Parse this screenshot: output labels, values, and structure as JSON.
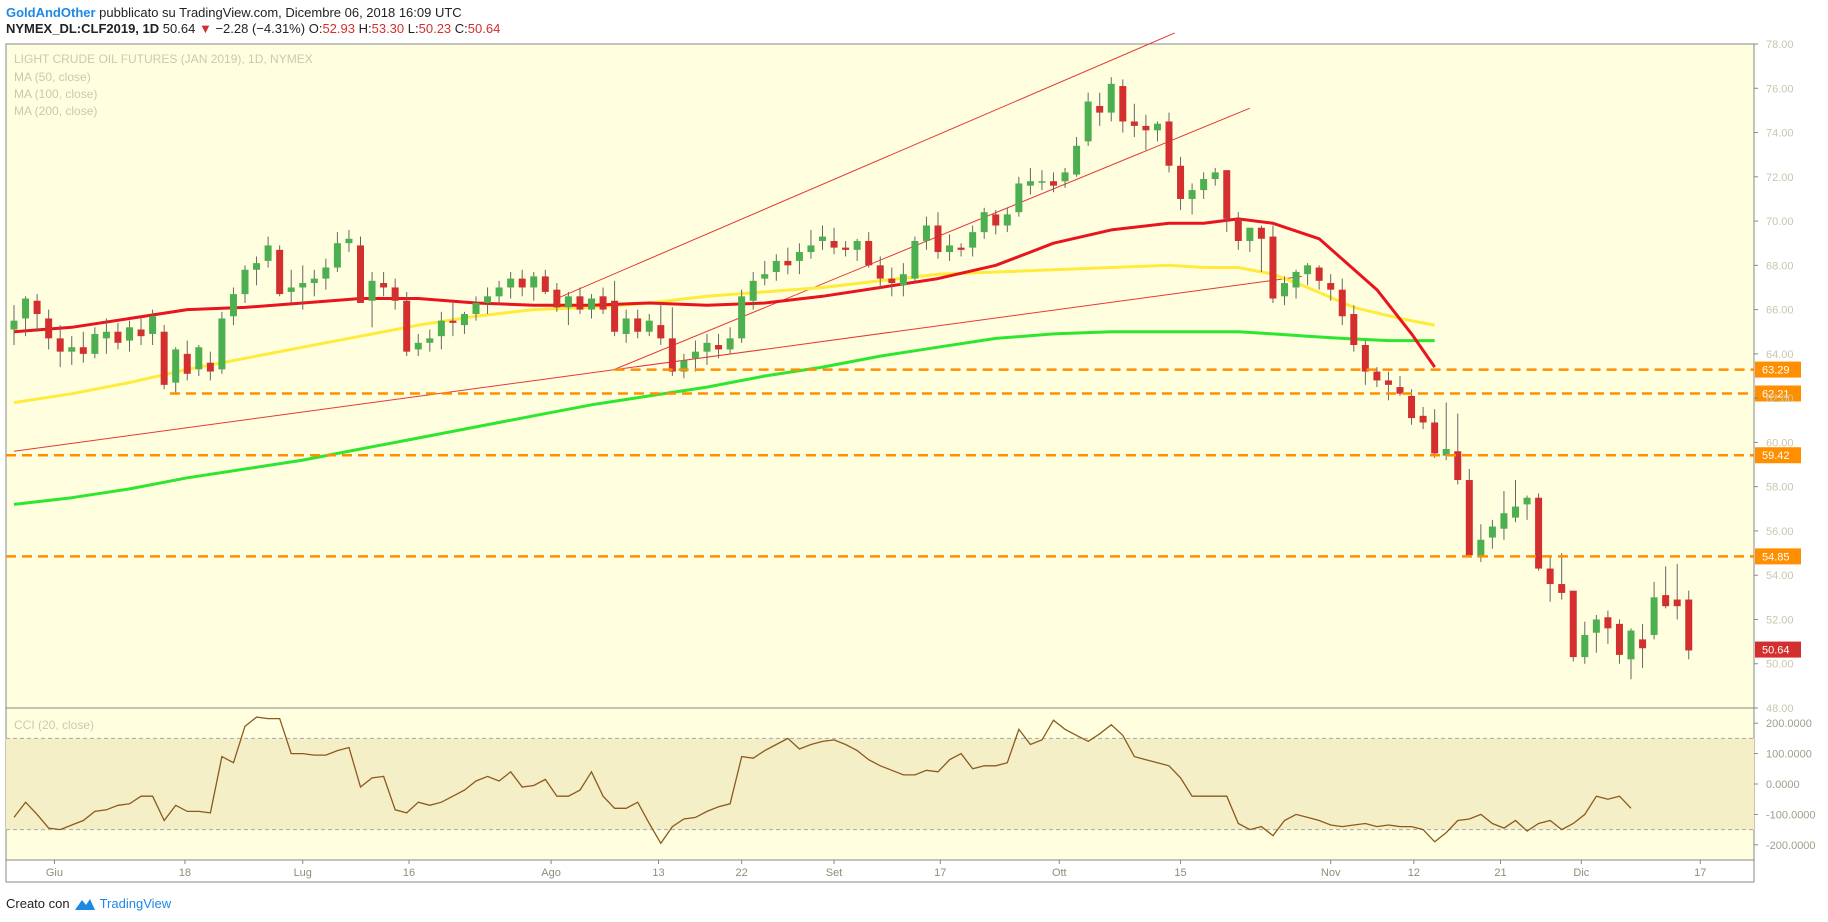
{
  "header": {
    "author": "GoldAndOther",
    "published": "pubblicato su TradingView.com, Dicembre 06, 2018 16:09 UTC",
    "symbol": "NYMEX_DL:CLF2019, 1D",
    "last": "50.64",
    "change_arrow": "▼",
    "change": "−2.28 (−4.31%)",
    "o_label": "O:",
    "o": "52.93",
    "h_label": "H:",
    "h": "53.30",
    "l_label": "L:",
    "l": "50.23",
    "c_label": "C:",
    "c": "50.64"
  },
  "legend": {
    "title": "LIGHT CRUDE OIL FUTURES (JAN 2019), 1D, NYMEX",
    "ma50": "MA (50, close)",
    "ma100": "MA (100, close)",
    "ma200": "MA (200, close)",
    "cci": "CCI (20, close)"
  },
  "footer": {
    "created": "Creato con",
    "brand": "TradingView",
    "logo_icon": "tradingview-logo-icon"
  },
  "chart_data": {
    "type": "candlestick",
    "title": "LIGHT CRUDE OIL FUTURES (JAN 2019), 1D, NYMEX",
    "colors": {
      "up": "#4caf50",
      "down": "#d32f2f",
      "ma50": "#e8141e",
      "ma100": "#ffeb3b",
      "ma200": "#2ee62e",
      "hline": "#ff8f00",
      "trend": "#e53935",
      "cci": "#8b5a1e",
      "price_bg": "#ffffe0",
      "cci_bg": "#f5efc8"
    },
    "x_range": [
      0,
      150
    ],
    "y_range": [
      48,
      78
    ],
    "y_ticks": [
      "48.00",
      "50.00",
      "52.00",
      "54.00",
      "56.00",
      "58.00",
      "60.00",
      "62.00",
      "64.00",
      "66.00",
      "68.00",
      "70.00",
      "72.00",
      "74.00",
      "76.00",
      "78.00"
    ],
    "x_ticks": [
      {
        "x": 3.5,
        "label": "Giu"
      },
      {
        "x": 14.8,
        "label": "18"
      },
      {
        "x": 25,
        "label": "Lug"
      },
      {
        "x": 34.2,
        "label": "16"
      },
      {
        "x": 46.5,
        "label": "Ago"
      },
      {
        "x": 55.8,
        "label": "13"
      },
      {
        "x": 63,
        "label": "22"
      },
      {
        "x": 71,
        "label": "Set"
      },
      {
        "x": 80.2,
        "label": "17"
      },
      {
        "x": 90.5,
        "label": "Ott"
      },
      {
        "x": 101,
        "label": "15"
      },
      {
        "x": 114,
        "label": "Nov"
      },
      {
        "x": 121.2,
        "label": "12"
      },
      {
        "x": 128.7,
        "label": "21"
      },
      {
        "x": 135.7,
        "label": "Dic"
      },
      {
        "x": 146,
        "label": "17"
      }
    ],
    "candles": [
      [
        65.1,
        66.2,
        64.4,
        65.5
      ],
      [
        65.6,
        66.6,
        64.8,
        66.5
      ],
      [
        66.4,
        66.7,
        65.0,
        65.8
      ],
      [
        65.6,
        66.0,
        64.2,
        64.7
      ],
      [
        64.7,
        65.3,
        63.4,
        64.1
      ],
      [
        64.1,
        64.8,
        63.5,
        64.3
      ],
      [
        64.3,
        65.0,
        63.6,
        64.0
      ],
      [
        64.0,
        65.2,
        63.8,
        64.9
      ],
      [
        64.7,
        65.6,
        64.0,
        65.0
      ],
      [
        65.0,
        65.4,
        64.2,
        64.5
      ],
      [
        64.6,
        65.5,
        64.1,
        65.2
      ],
      [
        65.1,
        65.6,
        64.4,
        64.8
      ],
      [
        64.9,
        66.0,
        64.4,
        65.7
      ],
      [
        65.0,
        65.3,
        62.4,
        62.6
      ],
      [
        62.7,
        64.3,
        62.2,
        64.2
      ],
      [
        64.0,
        64.6,
        62.8,
        63.1
      ],
      [
        63.3,
        64.4,
        63.0,
        64.3
      ],
      [
        63.6,
        64.1,
        62.8,
        63.2
      ],
      [
        63.3,
        65.9,
        63.1,
        65.6
      ],
      [
        65.7,
        67.0,
        65.3,
        66.7
      ],
      [
        66.7,
        68.0,
        66.3,
        67.8
      ],
      [
        67.8,
        68.4,
        67.1,
        68.1
      ],
      [
        68.2,
        69.3,
        67.9,
        68.9
      ],
      [
        68.7,
        68.9,
        66.6,
        66.7
      ],
      [
        66.8,
        67.8,
        66.3,
        67.0
      ],
      [
        67.0,
        68.0,
        66.0,
        67.2
      ],
      [
        67.2,
        67.8,
        66.6,
        67.4
      ],
      [
        67.4,
        68.3,
        66.9,
        67.9
      ],
      [
        67.9,
        69.5,
        67.7,
        69.0
      ],
      [
        69.0,
        69.6,
        68.6,
        69.2
      ],
      [
        68.9,
        69.3,
        66.5,
        66.3
      ],
      [
        66.4,
        67.7,
        65.2,
        67.3
      ],
      [
        67.2,
        67.7,
        66.6,
        67.0
      ],
      [
        67.0,
        67.4,
        66.0,
        66.4
      ],
      [
        66.4,
        66.8,
        63.9,
        64.1
      ],
      [
        64.2,
        64.9,
        63.9,
        64.5
      ],
      [
        64.5,
        65.1,
        64.1,
        64.7
      ],
      [
        64.8,
        65.9,
        64.2,
        65.5
      ],
      [
        65.5,
        66.3,
        64.8,
        65.4
      ],
      [
        65.3,
        65.9,
        64.9,
        65.8
      ],
      [
        65.8,
        66.6,
        65.5,
        66.3
      ],
      [
        66.3,
        67.0,
        65.8,
        66.6
      ],
      [
        66.6,
        67.3,
        66.2,
        67.0
      ],
      [
        67.0,
        67.7,
        66.5,
        67.4
      ],
      [
        67.4,
        67.8,
        66.6,
        67.0
      ],
      [
        67.0,
        67.7,
        66.4,
        67.5
      ],
      [
        67.5,
        67.8,
        66.7,
        66.8
      ],
      [
        66.9,
        67.2,
        65.9,
        66.1
      ],
      [
        66.1,
        66.8,
        65.3,
        66.6
      ],
      [
        66.6,
        67.0,
        65.8,
        66.0
      ],
      [
        66.0,
        66.7,
        65.6,
        66.5
      ],
      [
        66.6,
        67.0,
        65.8,
        66.0
      ],
      [
        66.4,
        67.3,
        64.8,
        65.0
      ],
      [
        64.9,
        66.0,
        64.5,
        65.6
      ],
      [
        65.6,
        66.0,
        64.7,
        65.0
      ],
      [
        65.0,
        65.8,
        64.8,
        65.5
      ],
      [
        65.3,
        66.3,
        64.4,
        64.7
      ],
      [
        64.7,
        66.1,
        63.0,
        63.2
      ],
      [
        63.2,
        64.0,
        62.9,
        63.7
      ],
      [
        63.8,
        64.6,
        63.2,
        64.1
      ],
      [
        64.1,
        64.9,
        63.5,
        64.5
      ],
      [
        64.4,
        64.9,
        63.8,
        64.2
      ],
      [
        64.2,
        65.2,
        64.0,
        64.7
      ],
      [
        64.7,
        66.9,
        64.5,
        66.6
      ],
      [
        66.4,
        67.7,
        66.0,
        67.3
      ],
      [
        67.4,
        68.2,
        67.1,
        67.6
      ],
      [
        67.7,
        68.5,
        67.3,
        68.2
      ],
      [
        68.2,
        68.8,
        67.6,
        68.0
      ],
      [
        68.2,
        69.0,
        67.6,
        68.6
      ],
      [
        68.6,
        69.6,
        68.3,
        68.9
      ],
      [
        69.1,
        69.8,
        68.7,
        69.3
      ],
      [
        69.1,
        69.7,
        68.5,
        68.8
      ],
      [
        68.8,
        69.1,
        68.4,
        68.7
      ],
      [
        68.7,
        69.2,
        68.2,
        69.1
      ],
      [
        69.1,
        69.5,
        67.9,
        68.0
      ],
      [
        68.0,
        68.4,
        67.0,
        67.4
      ],
      [
        67.4,
        67.9,
        66.6,
        67.2
      ],
      [
        67.1,
        68.1,
        66.6,
        67.6
      ],
      [
        67.4,
        69.3,
        67.2,
        69.1
      ],
      [
        69.1,
        70.2,
        68.7,
        69.8
      ],
      [
        69.8,
        70.4,
        68.3,
        68.6
      ],
      [
        68.6,
        69.4,
        68.2,
        68.9
      ],
      [
        68.8,
        69.0,
        68.4,
        68.7
      ],
      [
        68.8,
        69.8,
        68.4,
        69.5
      ],
      [
        69.5,
        70.6,
        69.2,
        70.4
      ],
      [
        70.3,
        70.5,
        69.4,
        69.8
      ],
      [
        69.8,
        70.6,
        69.5,
        70.3
      ],
      [
        70.4,
        72.0,
        70.2,
        71.7
      ],
      [
        71.6,
        72.4,
        71.2,
        71.8
      ],
      [
        71.8,
        72.3,
        71.4,
        71.8
      ],
      [
        71.8,
        72.2,
        71.3,
        71.6
      ],
      [
        71.8,
        72.4,
        71.5,
        72.2
      ],
      [
        72.1,
        73.8,
        72.0,
        73.4
      ],
      [
        73.6,
        75.8,
        73.4,
        75.4
      ],
      [
        75.2,
        75.8,
        74.3,
        74.9
      ],
      [
        74.9,
        76.5,
        74.5,
        76.2
      ],
      [
        76.1,
        76.4,
        74.0,
        74.5
      ],
      [
        74.5,
        75.3,
        73.8,
        74.3
      ],
      [
        74.3,
        74.8,
        73.2,
        74.1
      ],
      [
        74.1,
        74.5,
        73.6,
        74.4
      ],
      [
        74.5,
        74.9,
        72.2,
        72.5
      ],
      [
        72.5,
        72.9,
        70.5,
        71.0
      ],
      [
        71.0,
        71.7,
        70.3,
        71.4
      ],
      [
        71.4,
        72.2,
        71.0,
        71.9
      ],
      [
        71.9,
        72.4,
        71.6,
        72.2
      ],
      [
        72.3,
        72.3,
        69.5,
        70.1
      ],
      [
        70.1,
        70.4,
        68.7,
        69.1
      ],
      [
        69.1,
        69.7,
        68.6,
        69.7
      ],
      [
        69.7,
        69.8,
        67.7,
        69.2
      ],
      [
        69.3,
        69.8,
        66.3,
        66.5
      ],
      [
        66.6,
        67.5,
        66.2,
        67.2
      ],
      [
        67.0,
        67.8,
        66.5,
        67.7
      ],
      [
        67.6,
        68.1,
        67.1,
        68.0
      ],
      [
        67.9,
        68.0,
        66.9,
        67.3
      ],
      [
        67.2,
        67.6,
        66.4,
        66.9
      ],
      [
        66.9,
        67.4,
        65.3,
        65.7
      ],
      [
        65.8,
        66.2,
        64.1,
        64.4
      ],
      [
        64.4,
        64.6,
        62.6,
        63.2
      ],
      [
        63.2,
        63.4,
        62.5,
        62.8
      ],
      [
        62.8,
        63.2,
        61.9,
        62.6
      ],
      [
        62.5,
        63.0,
        62.1,
        62.2
      ],
      [
        62.1,
        62.4,
        60.8,
        61.1
      ],
      [
        61.2,
        61.6,
        60.6,
        60.9
      ],
      [
        60.9,
        61.5,
        59.3,
        59.5
      ],
      [
        59.4,
        61.8,
        59.2,
        59.7
      ],
      [
        59.6,
        61.3,
        58.1,
        58.3
      ],
      [
        58.3,
        58.8,
        54.9,
        54.9
      ],
      [
        54.8,
        56.3,
        54.6,
        55.6
      ],
      [
        55.7,
        56.5,
        55.2,
        56.2
      ],
      [
        56.1,
        57.8,
        55.6,
        56.8
      ],
      [
        56.6,
        58.3,
        56.4,
        57.1
      ],
      [
        57.2,
        57.6,
        56.5,
        57.5
      ],
      [
        57.5,
        57.7,
        54.2,
        54.3
      ],
      [
        54.3,
        54.8,
        52.8,
        53.6
      ],
      [
        53.6,
        55.0,
        52.9,
        53.2
      ],
      [
        53.3,
        53.3,
        50.1,
        50.3
      ],
      [
        50.3,
        51.9,
        50.0,
        51.3
      ],
      [
        51.4,
        52.2,
        50.5,
        52.0
      ],
      [
        52.1,
        52.4,
        50.9,
        51.6
      ],
      [
        51.8,
        52.0,
        50.0,
        50.4
      ],
      [
        50.2,
        51.6,
        49.3,
        51.5
      ],
      [
        51.1,
        51.8,
        49.8,
        50.7
      ],
      [
        51.3,
        53.7,
        51.1,
        53.0
      ],
      [
        53.1,
        54.4,
        52.5,
        52.6
      ],
      [
        52.9,
        54.5,
        52.0,
        52.6
      ],
      [
        52.9,
        53.3,
        50.2,
        50.6
      ]
    ],
    "ma50": [
      [
        0,
        65.0
      ],
      [
        5,
        65.2
      ],
      [
        10,
        65.6
      ],
      [
        15,
        66.0
      ],
      [
        20,
        66.1
      ],
      [
        25,
        66.3
      ],
      [
        30,
        66.5
      ],
      [
        35,
        66.5
      ],
      [
        40,
        66.3
      ],
      [
        45,
        66.2
      ],
      [
        50,
        66.2
      ],
      [
        55,
        66.3
      ],
      [
        60,
        66.2
      ],
      [
        65,
        66.3
      ],
      [
        70,
        66.6
      ],
      [
        75,
        67.0
      ],
      [
        80,
        67.4
      ],
      [
        85,
        68.0
      ],
      [
        88,
        68.6
      ],
      [
        90,
        69.0
      ],
      [
        95,
        69.6
      ],
      [
        100,
        69.9
      ],
      [
        103,
        69.9
      ],
      [
        106,
        70.1
      ],
      [
        109,
        69.9
      ],
      [
        113,
        69.2
      ],
      [
        118,
        66.9
      ],
      [
        121,
        64.9
      ],
      [
        123,
        63.4
      ]
    ],
    "ma100": [
      [
        0,
        61.8
      ],
      [
        5,
        62.2
      ],
      [
        10,
        62.7
      ],
      [
        15,
        63.3
      ],
      [
        20,
        63.8
      ],
      [
        25,
        64.3
      ],
      [
        30,
        64.8
      ],
      [
        35,
        65.3
      ],
      [
        40,
        65.7
      ],
      [
        45,
        66.0
      ],
      [
        50,
        66.1
      ],
      [
        55,
        66.3
      ],
      [
        60,
        66.6
      ],
      [
        65,
        66.8
      ],
      [
        70,
        67.0
      ],
      [
        75,
        67.3
      ],
      [
        80,
        67.6
      ],
      [
        85,
        67.7
      ],
      [
        90,
        67.8
      ],
      [
        95,
        67.9
      ],
      [
        100,
        68.0
      ],
      [
        103,
        67.9
      ],
      [
        106,
        67.9
      ],
      [
        109,
        67.6
      ],
      [
        112,
        67.0
      ],
      [
        116,
        66.1
      ],
      [
        120,
        65.6
      ],
      [
        123,
        65.3
      ]
    ],
    "ma200": [
      [
        0,
        57.2
      ],
      [
        5,
        57.5
      ],
      [
        10,
        57.9
      ],
      [
        15,
        58.4
      ],
      [
        20,
        58.8
      ],
      [
        25,
        59.2
      ],
      [
        30,
        59.7
      ],
      [
        35,
        60.2
      ],
      [
        40,
        60.7
      ],
      [
        45,
        61.2
      ],
      [
        50,
        61.7
      ],
      [
        55,
        62.1
      ],
      [
        60,
        62.5
      ],
      [
        65,
        63.0
      ],
      [
        70,
        63.4
      ],
      [
        75,
        63.9
      ],
      [
        80,
        64.3
      ],
      [
        85,
        64.7
      ],
      [
        90,
        64.9
      ],
      [
        95,
        65.0
      ],
      [
        100,
        65.0
      ],
      [
        103,
        65.0
      ],
      [
        106,
        65.0
      ],
      [
        109,
        64.9
      ],
      [
        112,
        64.8
      ],
      [
        115,
        64.7
      ],
      [
        119,
        64.6
      ],
      [
        123,
        64.6
      ]
    ],
    "horizontal_levels": [
      {
        "value": 63.29,
        "label": "63.29",
        "x_from": 52
      },
      {
        "value": 62.21,
        "label": "62.21",
        "x_from": 13.5
      },
      {
        "value": 59.42,
        "label": "59.42",
        "x_from": 0
      },
      {
        "value": 54.85,
        "label": "54.85",
        "x_from": 0
      }
    ],
    "last_price": {
      "value": 50.64,
      "label": "50.64"
    },
    "trend_lines": [
      {
        "x1": 47,
        "y1": 66.5,
        "x2": 100.5,
        "y2": 78.5
      },
      {
        "x1": 52,
        "y1": 63.3,
        "x2": 107,
        "y2": 75.1
      },
      {
        "x1": 52,
        "y1": 63.2,
        "x2": 52,
        "y2": 63.2
      },
      {
        "x1": 0,
        "y1": 59.6,
        "x2": 111.5,
        "y2": 67.5
      }
    ],
    "cci": {
      "y_range": [
        -250,
        250
      ],
      "band": [
        -150,
        150
      ],
      "y_ticks": [
        {
          "v": 200,
          "label": "200.0000"
        },
        {
          "v": 100,
          "label": "100.0000"
        },
        {
          "v": 0,
          "label": "0.0000"
        },
        {
          "v": -100,
          "label": "-100.0000"
        },
        {
          "v": -200,
          "label": "-200.0000"
        }
      ],
      "values": [
        -110,
        -60,
        -100,
        -145,
        -150,
        -135,
        -120,
        -90,
        -85,
        -70,
        -65,
        -40,
        -40,
        -120,
        -70,
        -90,
        -90,
        -95,
        90,
        70,
        190,
        220,
        215,
        215,
        100,
        100,
        95,
        95,
        110,
        120,
        -10,
        20,
        25,
        -85,
        -95,
        -60,
        -70,
        -60,
        -40,
        -20,
        10,
        25,
        10,
        40,
        -10,
        -5,
        15,
        -40,
        -40,
        -20,
        40,
        -40,
        -80,
        -80,
        -60,
        -130,
        -195,
        -140,
        -115,
        -110,
        -90,
        -75,
        -65,
        90,
        85,
        110,
        130,
        150,
        115,
        130,
        140,
        145,
        130,
        110,
        80,
        60,
        45,
        30,
        30,
        45,
        40,
        80,
        100,
        50,
        60,
        60,
        70,
        180,
        130,
        145,
        210,
        180,
        160,
        140,
        165,
        195,
        160,
        90,
        80,
        70,
        60,
        20,
        -40,
        -40,
        -40,
        -40,
        -130,
        -150,
        -140,
        -170,
        -120,
        -100,
        -110,
        -120,
        -135,
        -140,
        -135,
        -130,
        -140,
        -135,
        -140,
        -140,
        -150,
        -190,
        -160,
        -120,
        -115,
        -100,
        -130,
        -145,
        -120,
        -155,
        -130,
        -120,
        -150,
        -130,
        -100,
        -40,
        -50,
        -40,
        -80
      ]
    }
  }
}
